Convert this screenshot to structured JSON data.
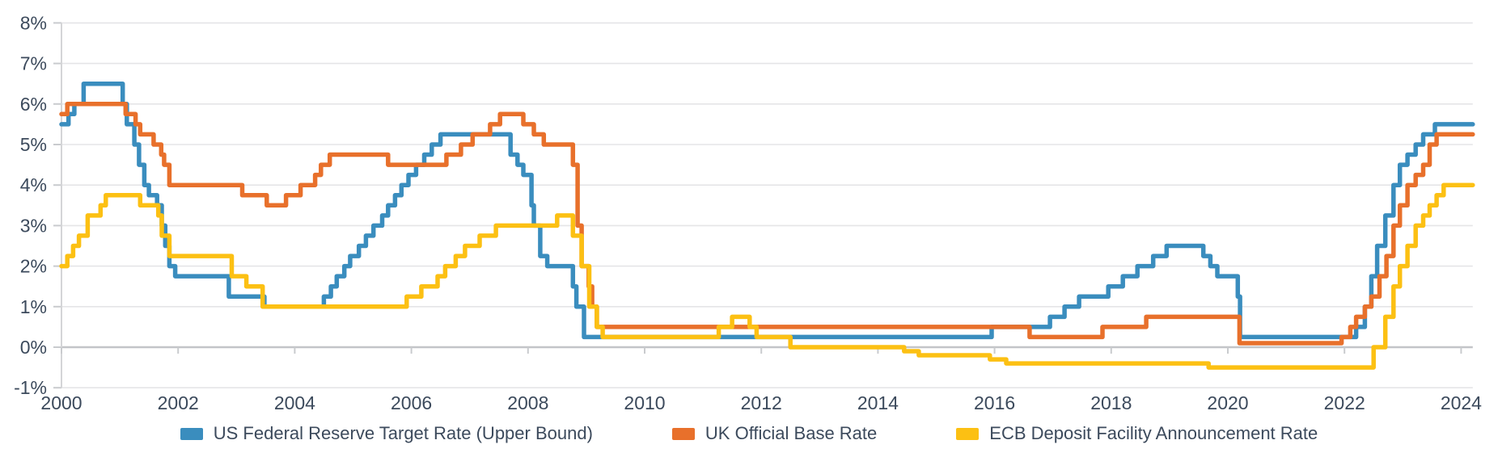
{
  "chart_data": {
    "type": "line",
    "step": true,
    "title": "",
    "xlabel": "",
    "ylabel": "",
    "grid": "horizontal",
    "legend_position": "bottom",
    "x_axis": {
      "range": [
        2000,
        2024.2
      ],
      "ticks": [
        2000,
        2002,
        2004,
        2006,
        2008,
        2010,
        2012,
        2014,
        2016,
        2018,
        2020,
        2022,
        2024
      ],
      "tick_labels": [
        "2000",
        "2002",
        "2004",
        "2006",
        "2008",
        "2010",
        "2012",
        "2014",
        "2016",
        "2018",
        "2020",
        "2022",
        "2024"
      ]
    },
    "y_axis": {
      "range": [
        -1,
        8
      ],
      "unit": "%",
      "ticks": [
        8,
        7,
        6,
        5,
        4,
        3,
        2,
        1,
        0,
        -1
      ],
      "tick_labels": [
        "8%",
        "7%",
        "6%",
        "5%",
        "4%",
        "3%",
        "2%",
        "1%",
        "0%",
        "-1%"
      ],
      "zero_line": 0
    },
    "series": [
      {
        "name": "US Federal Reserve Target Rate (Upper Bound)",
        "color": "#3A8DBE",
        "points": [
          [
            2000,
            5.5
          ],
          [
            2000.12,
            5.75
          ],
          [
            2000.22,
            6
          ],
          [
            2000.38,
            6.5
          ],
          [
            2001.05,
            6
          ],
          [
            2001.12,
            5.5
          ],
          [
            2001.25,
            5
          ],
          [
            2001.33,
            4.5
          ],
          [
            2001.42,
            4
          ],
          [
            2001.5,
            3.75
          ],
          [
            2001.64,
            3.5
          ],
          [
            2001.72,
            3
          ],
          [
            2001.78,
            2.5
          ],
          [
            2001.85,
            2
          ],
          [
            2001.95,
            1.75
          ],
          [
            2002.87,
            1.25
          ],
          [
            2003.48,
            1
          ],
          [
            2004.5,
            1.25
          ],
          [
            2004.62,
            1.5
          ],
          [
            2004.72,
            1.75
          ],
          [
            2004.85,
            2
          ],
          [
            2004.95,
            2.25
          ],
          [
            2005.1,
            2.5
          ],
          [
            2005.22,
            2.75
          ],
          [
            2005.35,
            3
          ],
          [
            2005.5,
            3.25
          ],
          [
            2005.6,
            3.5
          ],
          [
            2005.72,
            3.75
          ],
          [
            2005.83,
            4
          ],
          [
            2005.95,
            4.25
          ],
          [
            2006.08,
            4.5
          ],
          [
            2006.22,
            4.75
          ],
          [
            2006.35,
            5
          ],
          [
            2006.5,
            5.25
          ],
          [
            2007.7,
            4.75
          ],
          [
            2007.82,
            4.5
          ],
          [
            2007.92,
            4.25
          ],
          [
            2008.06,
            3.5
          ],
          [
            2008.1,
            3
          ],
          [
            2008.21,
            2.25
          ],
          [
            2008.33,
            2
          ],
          [
            2008.77,
            1.5
          ],
          [
            2008.83,
            1
          ],
          [
            2008.96,
            0.25
          ],
          [
            2015.95,
            0.5
          ],
          [
            2016.95,
            0.75
          ],
          [
            2017.2,
            1
          ],
          [
            2017.45,
            1.25
          ],
          [
            2017.95,
            1.5
          ],
          [
            2018.2,
            1.75
          ],
          [
            2018.45,
            2
          ],
          [
            2018.72,
            2.25
          ],
          [
            2018.95,
            2.5
          ],
          [
            2019.58,
            2.25
          ],
          [
            2019.7,
            2
          ],
          [
            2019.82,
            1.75
          ],
          [
            2020.17,
            1.25
          ],
          [
            2020.21,
            0.25
          ],
          [
            2022.2,
            0.5
          ],
          [
            2022.35,
            1
          ],
          [
            2022.46,
            1.75
          ],
          [
            2022.56,
            2.5
          ],
          [
            2022.7,
            3.25
          ],
          [
            2022.84,
            4
          ],
          [
            2022.95,
            4.5
          ],
          [
            2023.08,
            4.75
          ],
          [
            2023.22,
            5
          ],
          [
            2023.35,
            5.25
          ],
          [
            2023.55,
            5.5
          ],
          [
            2024.2,
            5.5
          ]
        ]
      },
      {
        "name": "UK Official Base Rate",
        "color": "#E8702B",
        "points": [
          [
            2000,
            5.75
          ],
          [
            2000.1,
            6
          ],
          [
            2001.1,
            5.75
          ],
          [
            2001.27,
            5.5
          ],
          [
            2001.35,
            5.25
          ],
          [
            2001.58,
            5
          ],
          [
            2001.71,
            4.75
          ],
          [
            2001.76,
            4.5
          ],
          [
            2001.85,
            4
          ],
          [
            2003.1,
            3.75
          ],
          [
            2003.52,
            3.5
          ],
          [
            2003.85,
            3.75
          ],
          [
            2004.1,
            4
          ],
          [
            2004.35,
            4.25
          ],
          [
            2004.45,
            4.5
          ],
          [
            2004.6,
            4.75
          ],
          [
            2005.6,
            4.5
          ],
          [
            2006.6,
            4.75
          ],
          [
            2006.85,
            5
          ],
          [
            2007.05,
            5.25
          ],
          [
            2007.35,
            5.5
          ],
          [
            2007.52,
            5.75
          ],
          [
            2007.92,
            5.5
          ],
          [
            2008.1,
            5.25
          ],
          [
            2008.27,
            5
          ],
          [
            2008.77,
            4.5
          ],
          [
            2008.85,
            3
          ],
          [
            2008.92,
            2
          ],
          [
            2009.04,
            1.5
          ],
          [
            2009.1,
            1
          ],
          [
            2009.18,
            0.5
          ],
          [
            2016.6,
            0.25
          ],
          [
            2017.85,
            0.5
          ],
          [
            2018.6,
            0.75
          ],
          [
            2020.2,
            0.1
          ],
          [
            2021.95,
            0.25
          ],
          [
            2022.1,
            0.5
          ],
          [
            2022.2,
            0.75
          ],
          [
            2022.35,
            1
          ],
          [
            2022.46,
            1.25
          ],
          [
            2022.6,
            1.75
          ],
          [
            2022.72,
            2.25
          ],
          [
            2022.84,
            3
          ],
          [
            2022.95,
            3.5
          ],
          [
            2023.08,
            4
          ],
          [
            2023.22,
            4.25
          ],
          [
            2023.35,
            4.5
          ],
          [
            2023.46,
            5
          ],
          [
            2023.58,
            5.25
          ],
          [
            2024.2,
            5.25
          ]
        ]
      },
      {
        "name": "ECB Deposit Facility Announcement Rate",
        "color": "#FCC013",
        "points": [
          [
            2000,
            2
          ],
          [
            2000.1,
            2.25
          ],
          [
            2000.2,
            2.5
          ],
          [
            2000.3,
            2.75
          ],
          [
            2000.45,
            3.25
          ],
          [
            2000.67,
            3.5
          ],
          [
            2000.76,
            3.75
          ],
          [
            2001.35,
            3.5
          ],
          [
            2001.66,
            3.25
          ],
          [
            2001.72,
            2.75
          ],
          [
            2001.85,
            2.25
          ],
          [
            2002.92,
            1.75
          ],
          [
            2003.17,
            1.5
          ],
          [
            2003.45,
            1
          ],
          [
            2005.92,
            1.25
          ],
          [
            2006.17,
            1.5
          ],
          [
            2006.45,
            1.75
          ],
          [
            2006.58,
            2
          ],
          [
            2006.76,
            2.25
          ],
          [
            2006.92,
            2.5
          ],
          [
            2007.17,
            2.75
          ],
          [
            2007.45,
            3
          ],
          [
            2008.5,
            3.25
          ],
          [
            2008.77,
            2.75
          ],
          [
            2008.92,
            2
          ],
          [
            2009.05,
            1
          ],
          [
            2009.18,
            0.5
          ],
          [
            2009.28,
            0.25
          ],
          [
            2011.27,
            0.5
          ],
          [
            2011.5,
            0.75
          ],
          [
            2011.8,
            0.5
          ],
          [
            2011.92,
            0.25
          ],
          [
            2012.5,
            0
          ],
          [
            2014.45,
            -0.1
          ],
          [
            2014.7,
            -0.2
          ],
          [
            2015.92,
            -0.3
          ],
          [
            2016.2,
            -0.4
          ],
          [
            2019.67,
            -0.5
          ],
          [
            2022.5,
            0
          ],
          [
            2022.7,
            0.75
          ],
          [
            2022.84,
            1.5
          ],
          [
            2022.95,
            2
          ],
          [
            2023.08,
            2.5
          ],
          [
            2023.22,
            3
          ],
          [
            2023.35,
            3.25
          ],
          [
            2023.46,
            3.5
          ],
          [
            2023.58,
            3.75
          ],
          [
            2023.7,
            4
          ],
          [
            2024.2,
            4
          ]
        ]
      }
    ]
  },
  "colors": {
    "background": "#FFFFFF",
    "axis_label": "#3C4A5C",
    "gridline": "#E5E5E7",
    "zero_line": "#C3C5C8",
    "axis_line": "#D4D5D7",
    "tick": "#C9CBCE"
  }
}
